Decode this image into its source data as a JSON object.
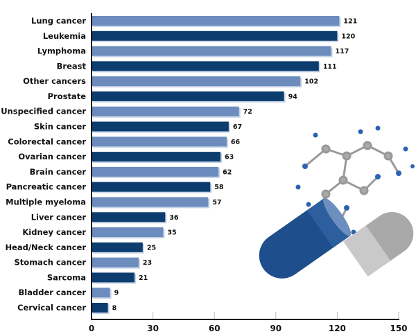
{
  "chart_data": {
    "type": "bar",
    "orientation": "horizontal",
    "title": "",
    "xlabel": "",
    "ylabel": "",
    "categories": [
      "Lung cancer",
      "Leukemia",
      "Lymphoma",
      "Breast",
      "Other cancers",
      "Prostate",
      "Unspecified cancer",
      "Skin cancer",
      "Colorectal cancer",
      "Ovarian cancer",
      "Brain cancer",
      "Pancreatic cancer",
      "Multiple myeloma",
      "Liver cancer",
      "Kidney cancer",
      "Head/Neck cancer",
      "Stomach cancer",
      "Sarcoma",
      "Bladder cancer",
      "Cervical cancer"
    ],
    "values": [
      121,
      120,
      117,
      111,
      102,
      94,
      72,
      67,
      66,
      63,
      62,
      58,
      57,
      36,
      35,
      25,
      23,
      21,
      9,
      8
    ],
    "xlim": [
      0,
      150
    ],
    "xticks": [
      0,
      30,
      60,
      90,
      120,
      150
    ],
    "grid": false,
    "colors": {
      "light": "#6b8cbd",
      "dark": "#0d3d6f"
    }
  }
}
